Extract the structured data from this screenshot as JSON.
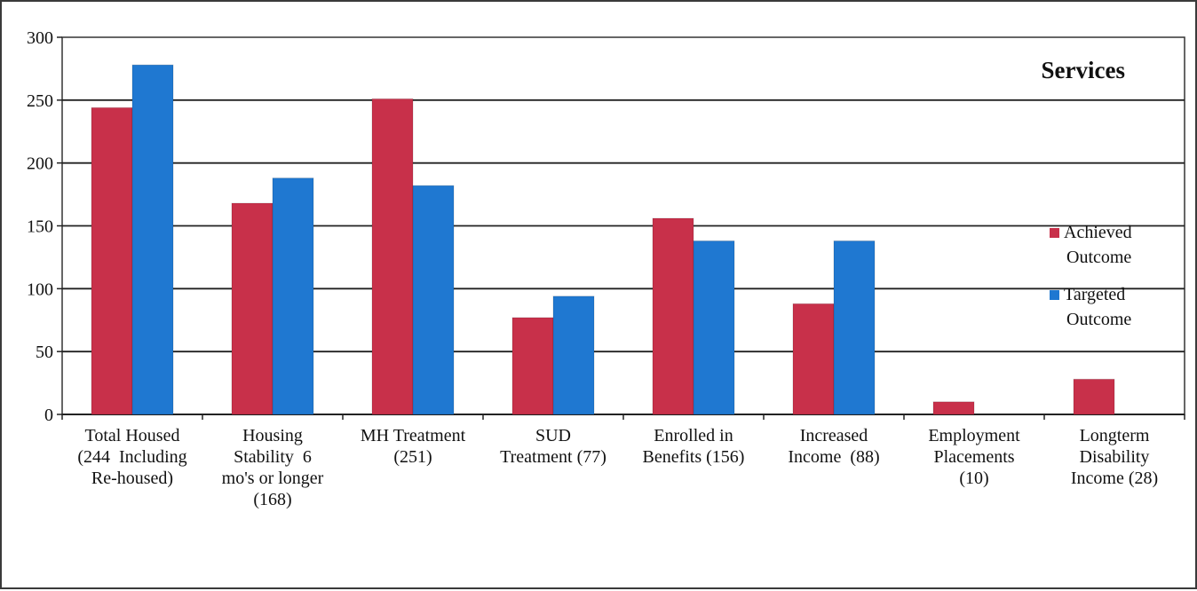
{
  "chart_data": {
    "type": "bar",
    "title": "Services",
    "categories": [
      [
        "Total Housed",
        "(244  Including",
        "Re-housed)"
      ],
      [
        "Housing",
        "Stability  6",
        "mo's or longer",
        "(168)"
      ],
      [
        "MH Treatment",
        "(251)"
      ],
      [
        "SUD",
        "Treatment (77)"
      ],
      [
        "Enrolled in",
        "Benefits (156)"
      ],
      [
        "Increased",
        "Income  (88)"
      ],
      [
        "Employment",
        "Placements",
        "(10)"
      ],
      [
        "Longterm",
        "Disability",
        "Income (28)"
      ]
    ],
    "series": [
      {
        "name": [
          "Achieved",
          "Outcome"
        ],
        "color": "#c8304a",
        "values": [
          244,
          168,
          251,
          77,
          156,
          88,
          10,
          28
        ]
      },
      {
        "name": [
          "Targeted",
          "Outcome"
        ],
        "color": "#1f78d1",
        "values": [
          278,
          188,
          182,
          94,
          138,
          138,
          0,
          0
        ]
      }
    ],
    "ylim": [
      0,
      300
    ],
    "yticks": [
      0,
      50,
      100,
      150,
      200,
      250,
      300
    ],
    "grid": true,
    "legend_position": "right",
    "xlabel": "",
    "ylabel": ""
  }
}
